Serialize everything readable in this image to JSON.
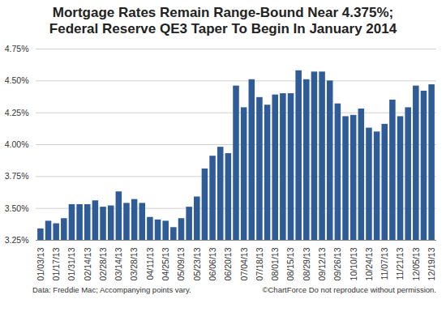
{
  "chart_data": {
    "type": "bar",
    "title": "Mortgage Rates Remain Range-Bound Near 4.375%;\nFederal Reserve QE3 Taper To Begin In January 2014",
    "caption": "Data: Freddie Mac; Accompanying points vary.",
    "credit": "©ChartForce  Do not reproduce without permission.",
    "categories": [
      "01/03/13",
      null,
      "01/17/13",
      null,
      "01/31/13",
      null,
      "02/14/13",
      null,
      "02/28/13",
      null,
      "03/14/13",
      null,
      "03/28/13",
      null,
      "04/11/13",
      null,
      "04/25/13",
      null,
      "05/09/13",
      null,
      "05/23/13",
      null,
      "06/06/13",
      null,
      "06/20/13",
      null,
      "07/04/13",
      null,
      "07/18/13",
      null,
      "08/01/13",
      null,
      "08/15/13",
      null,
      "08/29/13",
      null,
      "09/12/13",
      null,
      "09/26/13",
      null,
      "10/10/13",
      null,
      "10/24/13",
      null,
      "11/07/13",
      null,
      "11/21/13",
      null,
      "12/05/13",
      null,
      "12/19/13"
    ],
    "values": [
      3.34,
      3.4,
      3.38,
      3.42,
      3.53,
      3.53,
      3.53,
      3.56,
      3.51,
      3.52,
      3.63,
      3.54,
      3.57,
      3.54,
      3.43,
      3.41,
      3.4,
      3.35,
      3.42,
      3.51,
      3.59,
      3.81,
      3.91,
      3.98,
      3.93,
      4.46,
      4.29,
      4.51,
      4.37,
      4.31,
      4.39,
      4.4,
      4.4,
      4.58,
      4.51,
      4.57,
      4.57,
      4.5,
      4.32,
      4.22,
      4.23,
      4.28,
      4.13,
      4.1,
      4.16,
      4.35,
      4.22,
      4.29,
      4.46,
      4.42,
      4.47
    ],
    "color": "#2f5b96",
    "ylim": [
      3.25,
      4.75
    ],
    "yticks": [
      {
        "value": 3.25,
        "label": "3.25%"
      },
      {
        "value": 3.5,
        "label": "3.50%"
      },
      {
        "value": 3.75,
        "label": "3.75%"
      },
      {
        "value": 4.0,
        "label": "4.00%"
      },
      {
        "value": 4.25,
        "label": "4.25%"
      },
      {
        "value": 4.5,
        "label": "4.50%"
      },
      {
        "value": 4.75,
        "label": "4.75%"
      }
    ],
    "grid": true
  }
}
